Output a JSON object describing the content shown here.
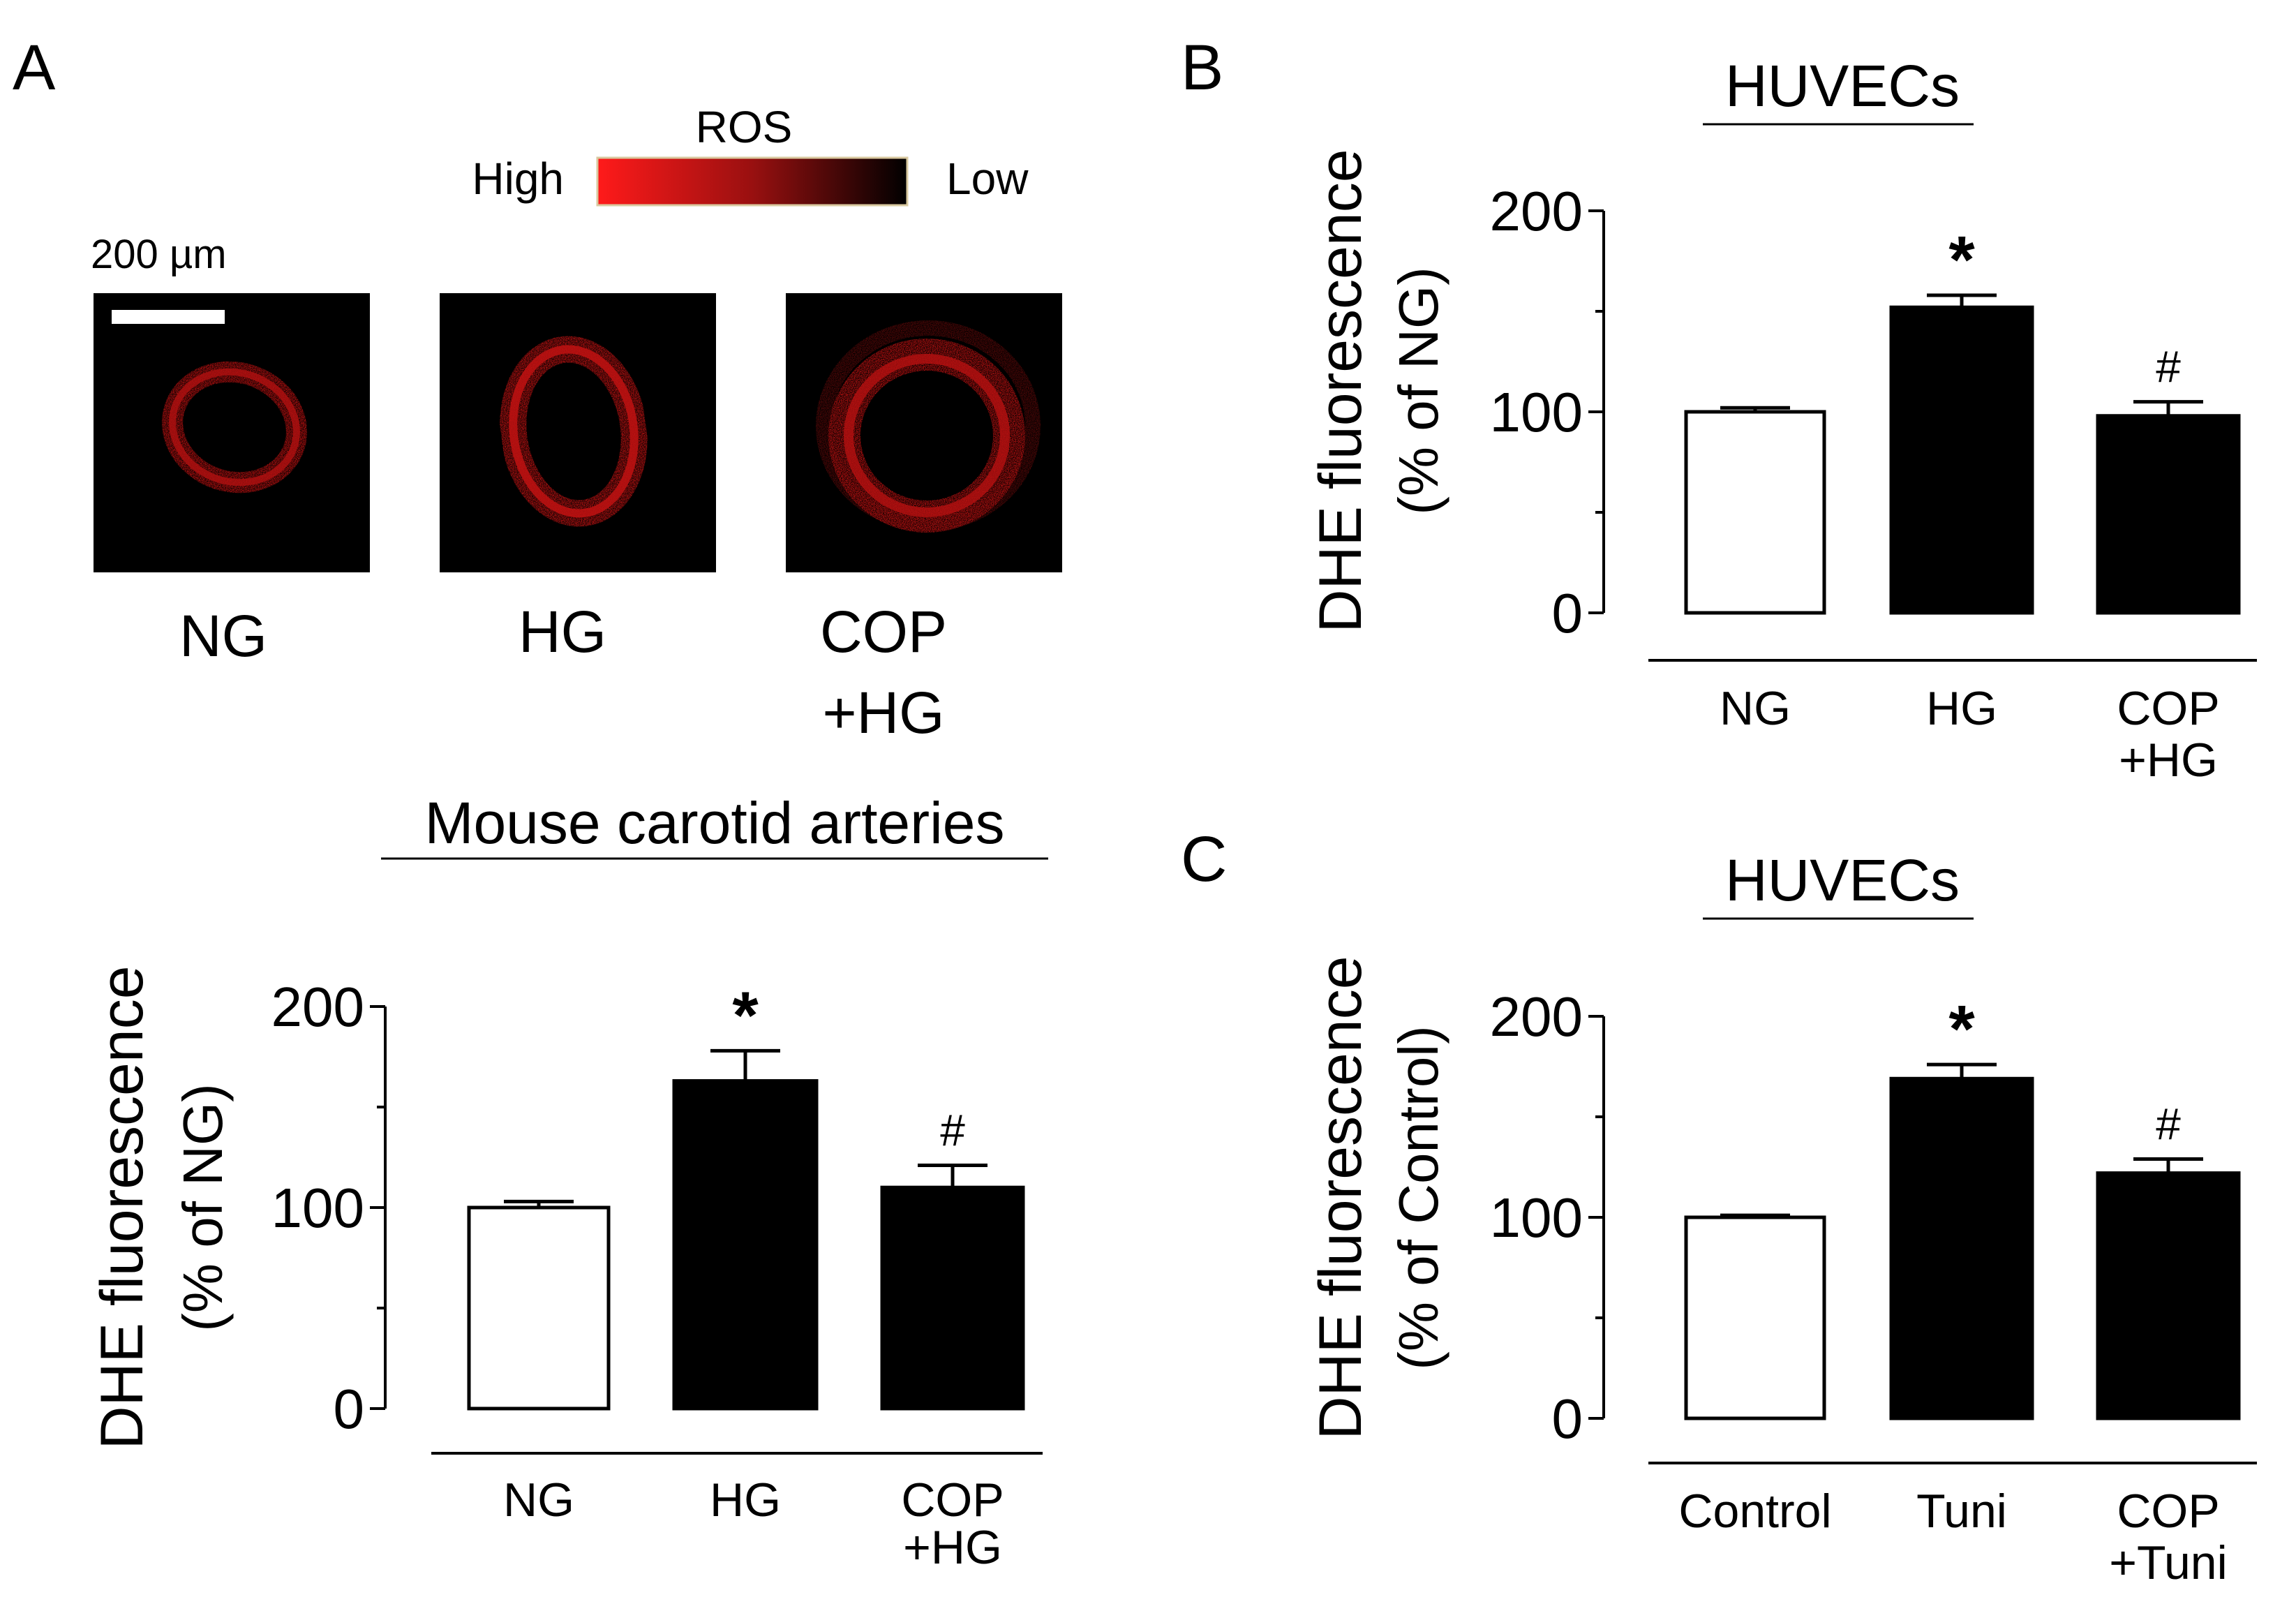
{
  "panels": {
    "a": "A",
    "b": "B",
    "c": "C"
  },
  "colors": {
    "ros_high": "#ff1a1a",
    "ros_low": "#000000",
    "bar_control": "#ffffff",
    "bar_treated": "#000000"
  },
  "legend": {
    "title": "ROS",
    "high": "High",
    "low": "Low"
  },
  "micrographs": {
    "scale_label": "200 µm",
    "labels": [
      {
        "line1": "NG",
        "line2": ""
      },
      {
        "line1": "HG",
        "line2": ""
      },
      {
        "line1": "COP",
        "line2": "+HG"
      }
    ]
  },
  "chart_data": [
    {
      "type": "bar",
      "panel": "A",
      "title": "Mouse carotid arteries",
      "ylabel_line1": "DHE fluorescence",
      "ylabel_line2": "(% of NG)",
      "xlabel": "",
      "ylim": [
        0,
        200
      ],
      "yticks": [
        0,
        100,
        200
      ],
      "categories": [
        {
          "line1": "NG",
          "line2": ""
        },
        {
          "line1": "HG",
          "line2": ""
        },
        {
          "line1": "COP",
          "line2": "+HG"
        }
      ],
      "values": [
        100,
        163,
        110
      ],
      "errors": [
        3,
        15,
        11
      ],
      "fills": [
        "white",
        "black",
        "black"
      ],
      "annotations": [
        "",
        "*",
        "#"
      ]
    },
    {
      "type": "bar",
      "panel": "B",
      "title": "HUVECs",
      "ylabel_line1": "DHE fluorescence",
      "ylabel_line2": "(% of NG)",
      "xlabel": "",
      "ylim": [
        0,
        200
      ],
      "yticks": [
        0,
        100,
        200
      ],
      "categories": [
        {
          "line1": "NG",
          "line2": ""
        },
        {
          "line1": "HG",
          "line2": ""
        },
        {
          "line1": "COP",
          "line2": "+HG"
        }
      ],
      "values": [
        100,
        152,
        98
      ],
      "errors": [
        2,
        6,
        7
      ],
      "fills": [
        "white",
        "black",
        "black"
      ],
      "annotations": [
        "",
        "*",
        "#"
      ]
    },
    {
      "type": "bar",
      "panel": "C",
      "title": "HUVECs",
      "ylabel_line1": "DHE fluorescence",
      "ylabel_line2": "(% of Control)",
      "xlabel": "",
      "ylim": [
        0,
        200
      ],
      "yticks": [
        0,
        100,
        200
      ],
      "categories": [
        {
          "line1": "Control",
          "line2": ""
        },
        {
          "line1": "Tuni",
          "line2": ""
        },
        {
          "line1": "COP",
          "line2": "+Tuni"
        }
      ],
      "values": [
        100,
        169,
        122
      ],
      "errors": [
        1,
        7,
        7
      ],
      "fills": [
        "white",
        "black",
        "black"
      ],
      "annotations": [
        "",
        "*",
        "#"
      ]
    }
  ]
}
